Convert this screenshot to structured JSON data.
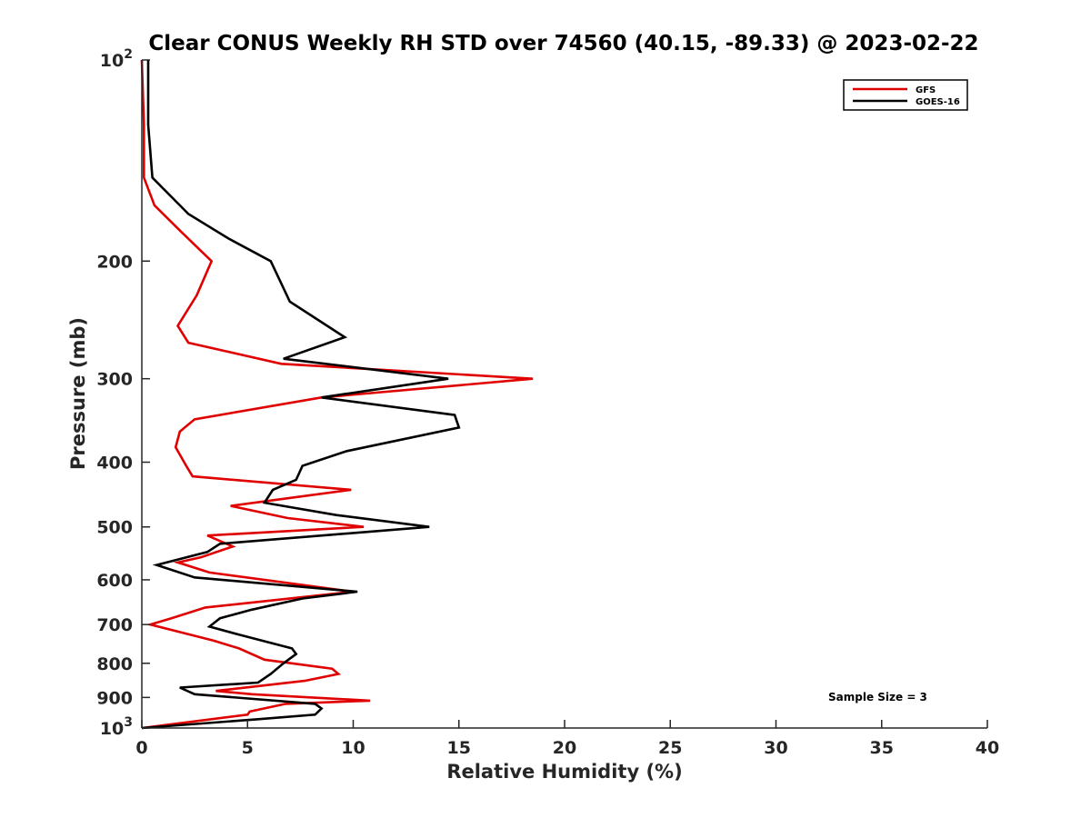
{
  "chart_data": {
    "type": "line",
    "title": "Clear CONUS Weekly RH STD over 74560 (40.15, -89.33) @ 2023-02-22",
    "xlabel": "Relative Humidity (%)",
    "ylabel": "Pressure (mb)",
    "xlim": [
      0,
      40
    ],
    "ylim": [
      100,
      1000
    ],
    "y_scale": "log",
    "y_reversed": true,
    "x_ticks": [
      "0",
      "5",
      "10",
      "15",
      "20",
      "25",
      "30",
      "35",
      "40"
    ],
    "y_ticks": [
      {
        "value": 100,
        "base": "10",
        "exp": "2"
      },
      {
        "value": 200,
        "label": "200"
      },
      {
        "value": 300,
        "label": "300"
      },
      {
        "value": 400,
        "label": "400"
      },
      {
        "value": 500,
        "label": "500"
      },
      {
        "value": 600,
        "label": "600"
      },
      {
        "value": 700,
        "label": "700"
      },
      {
        "value": 800,
        "label": "800"
      },
      {
        "value": 900,
        "label": "900"
      },
      {
        "value": 1000,
        "base": "10",
        "exp": "3"
      }
    ],
    "legend_position": "top-right",
    "grid": false,
    "annotation": "Sample Size = 3",
    "series": [
      {
        "name": "GFS",
        "color": "#e00000",
        "points": [
          [
            0.0,
            100
          ],
          [
            0.1,
            125
          ],
          [
            0.1,
            150
          ],
          [
            0.6,
            165
          ],
          [
            1.8,
            180
          ],
          [
            3.3,
            200
          ],
          [
            2.6,
            225
          ],
          [
            1.7,
            250
          ],
          [
            2.2,
            265
          ],
          [
            6.6,
            285
          ],
          [
            18.5,
            300
          ],
          [
            8.5,
            320
          ],
          [
            2.5,
            345
          ],
          [
            1.8,
            360
          ],
          [
            1.6,
            380
          ],
          [
            2.1,
            405
          ],
          [
            2.4,
            420
          ],
          [
            9.9,
            440
          ],
          [
            4.2,
            465
          ],
          [
            6.9,
            485
          ],
          [
            10.5,
            500
          ],
          [
            3.1,
            515
          ],
          [
            4.3,
            535
          ],
          [
            2.8,
            555
          ],
          [
            1.7,
            565
          ],
          [
            3.2,
            585
          ],
          [
            10.0,
            625
          ],
          [
            3.0,
            660
          ],
          [
            1.4,
            685
          ],
          [
            0.4,
            700
          ],
          [
            3.4,
            740
          ],
          [
            4.6,
            760
          ],
          [
            5.8,
            790
          ],
          [
            9.0,
            815
          ],
          [
            9.3,
            830
          ],
          [
            7.7,
            850
          ],
          [
            3.5,
            880
          ],
          [
            5.2,
            890
          ],
          [
            10.8,
            910
          ],
          [
            6.8,
            920
          ],
          [
            5.1,
            945
          ],
          [
            5.0,
            955
          ],
          [
            0.0,
            1000
          ]
        ]
      },
      {
        "name": "GOES-16",
        "color": "#000000",
        "points": [
          [
            0.3,
            100
          ],
          [
            0.3,
            125
          ],
          [
            0.5,
            150
          ],
          [
            2.2,
            170
          ],
          [
            4.1,
            185
          ],
          [
            6.1,
            200
          ],
          [
            7.0,
            230
          ],
          [
            9.6,
            260
          ],
          [
            6.7,
            280
          ],
          [
            14.5,
            300
          ],
          [
            8.5,
            320
          ],
          [
            14.8,
            340
          ],
          [
            15.0,
            355
          ],
          [
            9.7,
            385
          ],
          [
            7.6,
            405
          ],
          [
            7.3,
            425
          ],
          [
            6.2,
            440
          ],
          [
            5.8,
            460
          ],
          [
            9.2,
            480
          ],
          [
            13.6,
            500
          ],
          [
            3.7,
            530
          ],
          [
            3.1,
            545
          ],
          [
            0.7,
            570
          ],
          [
            2.5,
            595
          ],
          [
            10.2,
            625
          ],
          [
            7.6,
            640
          ],
          [
            5.2,
            665
          ],
          [
            3.7,
            685
          ],
          [
            3.2,
            705
          ],
          [
            4.6,
            725
          ],
          [
            7.1,
            760
          ],
          [
            7.3,
            775
          ],
          [
            6.7,
            800
          ],
          [
            6.1,
            830
          ],
          [
            5.5,
            855
          ],
          [
            1.8,
            870
          ],
          [
            2.5,
            890
          ],
          [
            8.2,
            920
          ],
          [
            8.5,
            935
          ],
          [
            8.2,
            955
          ],
          [
            5.5,
            970
          ],
          [
            0.0,
            1000
          ]
        ]
      }
    ]
  }
}
